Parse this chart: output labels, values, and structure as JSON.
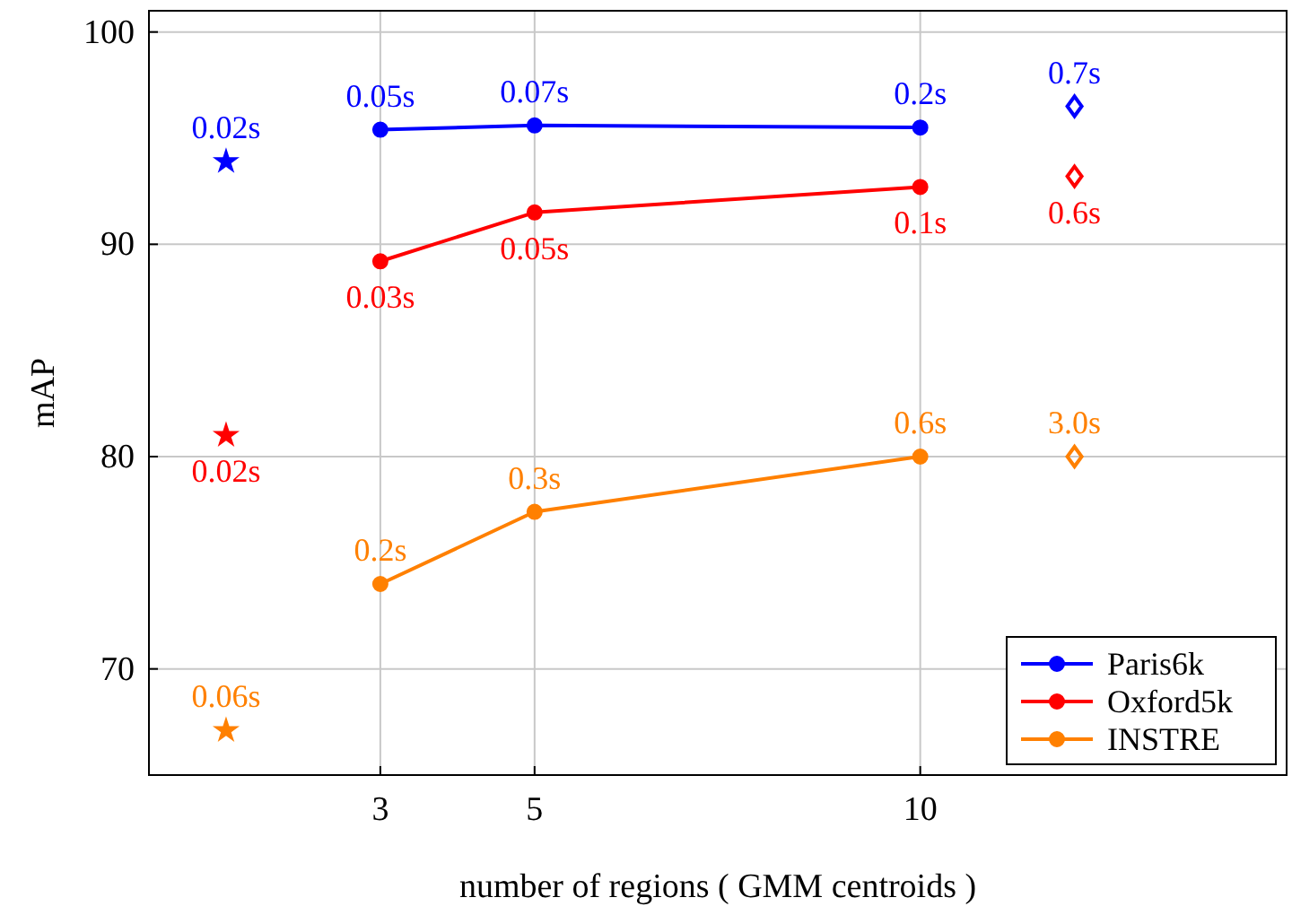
{
  "chart_data": {
    "type": "line",
    "xlabel": "number of regions ( GMM centroids )",
    "ylabel": "mAP",
    "xlim": [
      0,
      14.75
    ],
    "ylim": [
      65,
      101
    ],
    "xticks": [
      3,
      5,
      10
    ],
    "yticks": [
      70,
      80,
      90,
      100
    ],
    "grid": true,
    "legend": "bottom right",
    "series": [
      {
        "name": "Paris6k",
        "color": "#0000ff",
        "marker": "circle",
        "x": [
          3,
          5,
          10
        ],
        "values": [
          95.4,
          95.6,
          95.5
        ]
      },
      {
        "name": "Oxford5k",
        "color": "#ff0000",
        "marker": "circle",
        "x": [
          3,
          5,
          10
        ],
        "values": [
          89.2,
          91.5,
          92.7
        ]
      },
      {
        "name": "INSTRE",
        "color": "#ff8000",
        "marker": "circle",
        "x": [
          3,
          5,
          10
        ],
        "values": [
          74.0,
          77.4,
          80.0
        ]
      },
      {
        "type": "scatter",
        "color": "#0000ff",
        "marker": "star",
        "x": [
          1
        ],
        "values": [
          93.9
        ]
      },
      {
        "type": "scatter",
        "color": "#ff0000",
        "marker": "star",
        "x": [
          1
        ],
        "values": [
          81.0
        ]
      },
      {
        "type": "scatter",
        "color": "#ff8000",
        "marker": "star",
        "x": [
          1
        ],
        "values": [
          67.1
        ]
      },
      {
        "type": "scatter",
        "color": "#0000ff",
        "marker": "diamond",
        "x": [
          12
        ],
        "values": [
          96.5
        ]
      },
      {
        "type": "scatter",
        "color": "#ff0000",
        "marker": "diamond",
        "x": [
          12
        ],
        "values": [
          93.2
        ]
      },
      {
        "type": "scatter",
        "color": "#ff8000",
        "marker": "diamond",
        "x": [
          12
        ],
        "values": [
          80.0
        ]
      }
    ],
    "annotations": [
      {
        "text": "0.05s",
        "x": 3,
        "y": 95.4
      },
      {
        "text": "0.07s",
        "x": 5,
        "y": 95.6
      },
      {
        "text": "0.2s",
        "x": 10,
        "y": 95.5
      },
      {
        "text": "0.03s",
        "x": 3,
        "y": 89.2
      },
      {
        "text": "0.05s",
        "x": 5,
        "y": 91.5
      },
      {
        "text": "0.1s",
        "x": 10,
        "y": 92.7
      },
      {
        "text": "0.2s",
        "x": 3,
        "y": 74.0
      },
      {
        "text": "0.3s",
        "x": 5,
        "y": 77.4
      },
      {
        "text": "0.6s",
        "x": 10,
        "y": 80.0
      },
      {
        "text": "0.02s",
        "x": 1,
        "y": 93.9
      },
      {
        "text": "0.02s",
        "x": 1,
        "y": 81.0
      },
      {
        "text": "0.06s",
        "x": 1,
        "y": 67.1
      },
      {
        "text": "0.7s",
        "x": 12,
        "y": 96.5
      },
      {
        "text": "0.6s",
        "x": 12,
        "y": 93.2
      },
      {
        "text": "3.0s",
        "x": 12,
        "y": 80.0
      }
    ]
  }
}
